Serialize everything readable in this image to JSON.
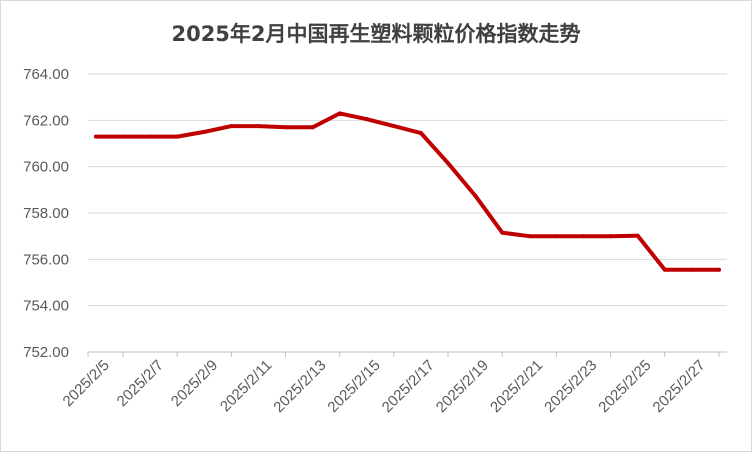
{
  "chart_data": {
    "type": "line",
    "title": "2025年2月中国再生塑料颗粒价格指数走势",
    "xlabel": "",
    "ylabel": "",
    "x_tick_labels": [
      "2025/2/5",
      "2025/2/7",
      "2025/2/9",
      "2025/2/11",
      "2025/2/13",
      "2025/2/15",
      "2025/2/17",
      "2025/2/19",
      "2025/2/21",
      "2025/2/23",
      "2025/2/25",
      "2025/2/27"
    ],
    "y_tick_labels": [
      "752.00",
      "754.00",
      "756.00",
      "758.00",
      "760.00",
      "762.00",
      "764.00"
    ],
    "ylim": [
      752,
      764
    ],
    "x_range": [
      "2025/2/5",
      "2025/2/28"
    ],
    "grid": true,
    "legend": "none",
    "series": [
      {
        "color": "#C00000",
        "points": [
          {
            "x": "2025/2/5",
            "y": 761.3
          },
          {
            "x": "2025/2/6",
            "y": 761.3
          },
          {
            "x": "2025/2/7",
            "y": 761.3
          },
          {
            "x": "2025/2/8",
            "y": 761.3
          },
          {
            "x": "2025/2/9",
            "y": 761.5
          },
          {
            "x": "2025/2/10",
            "y": 761.75
          },
          {
            "x": "2025/2/11",
            "y": 761.75
          },
          {
            "x": "2025/2/12",
            "y": 761.7
          },
          {
            "x": "2025/2/13",
            "y": 761.7
          },
          {
            "x": "2025/2/14",
            "y": 762.3
          },
          {
            "x": "2025/2/15",
            "y": 762.05
          },
          {
            "x": "2025/2/16",
            "y": 761.75
          },
          {
            "x": "2025/2/17",
            "y": 761.45
          },
          {
            "x": "2025/2/18",
            "y": 760.15
          },
          {
            "x": "2025/2/19",
            "y": 758.75
          },
          {
            "x": "2025/2/20",
            "y": 757.15
          },
          {
            "x": "2025/2/21",
            "y": 757.0
          },
          {
            "x": "2025/2/22",
            "y": 757.0
          },
          {
            "x": "2025/2/23",
            "y": 757.0
          },
          {
            "x": "2025/2/24",
            "y": 757.0
          },
          {
            "x": "2025/2/25",
            "y": 757.02
          },
          {
            "x": "2025/2/26",
            "y": 755.55
          },
          {
            "x": "2025/2/27",
            "y": 755.55
          },
          {
            "x": "2025/2/28",
            "y": 755.55
          }
        ]
      }
    ]
  }
}
